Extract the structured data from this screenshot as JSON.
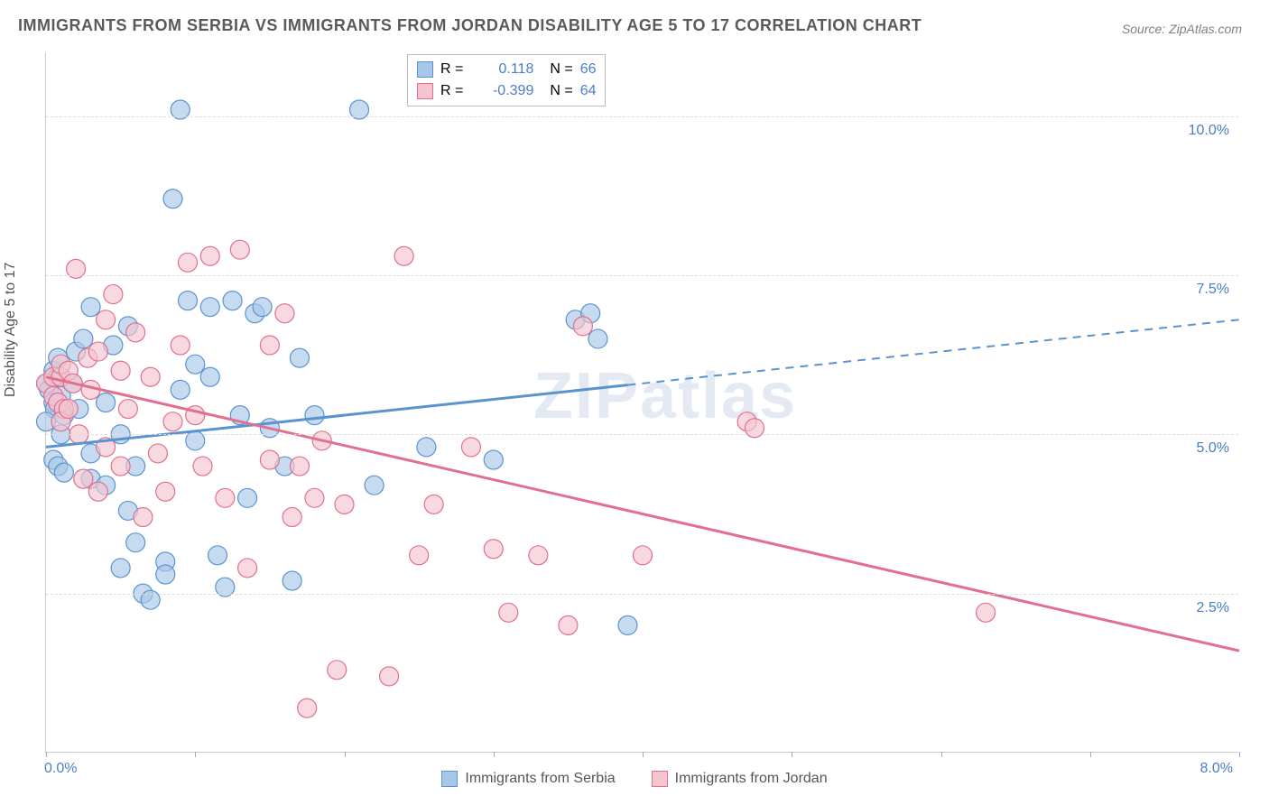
{
  "title": "IMMIGRANTS FROM SERBIA VS IMMIGRANTS FROM JORDAN DISABILITY AGE 5 TO 17 CORRELATION CHART",
  "source": "Source: ZipAtlas.com",
  "y_axis_title": "Disability Age 5 to 17",
  "watermark": "ZIPatlas",
  "chart": {
    "type": "scatter",
    "xlim": [
      0,
      8
    ],
    "ylim": [
      0,
      11
    ],
    "y_ticks": [
      2.5,
      5.0,
      7.5,
      10.0
    ],
    "y_tick_labels": [
      "2.5%",
      "5.0%",
      "7.5%",
      "10.0%"
    ],
    "x_left_label": "0.0%",
    "x_right_label": "8.0%",
    "x_ticks": [
      0,
      1,
      2,
      3,
      4,
      5,
      6,
      7,
      8
    ],
    "background_color": "#ffffff",
    "grid_color": "#dddddd",
    "series": [
      {
        "name": "Immigrants from Serbia",
        "color_fill": "#a8c7e8",
        "color_stroke": "#5b93cf",
        "r_value": "0.118",
        "n_value": "66",
        "trend": {
          "x1": 0,
          "y1": 4.8,
          "x2": 8,
          "y2": 6.8,
          "solid_until_x": 3.9
        },
        "points": [
          [
            0.0,
            5.8
          ],
          [
            0.02,
            5.7
          ],
          [
            0.05,
            6.0
          ],
          [
            0.05,
            5.5
          ],
          [
            0.08,
            5.9
          ],
          [
            0.06,
            5.4
          ],
          [
            0.0,
            5.2
          ],
          [
            0.08,
            6.2
          ],
          [
            0.1,
            5.9
          ],
          [
            0.1,
            5.6
          ],
          [
            0.12,
            5.3
          ],
          [
            0.1,
            5.0
          ],
          [
            0.05,
            4.6
          ],
          [
            0.08,
            4.5
          ],
          [
            0.12,
            4.4
          ],
          [
            0.2,
            6.3
          ],
          [
            0.18,
            5.8
          ],
          [
            0.22,
            5.4
          ],
          [
            0.25,
            6.5
          ],
          [
            0.3,
            7.0
          ],
          [
            0.3,
            4.7
          ],
          [
            0.3,
            4.3
          ],
          [
            0.4,
            4.2
          ],
          [
            0.4,
            5.5
          ],
          [
            0.45,
            6.4
          ],
          [
            0.5,
            5.0
          ],
          [
            0.55,
            6.7
          ],
          [
            0.55,
            3.8
          ],
          [
            0.6,
            4.5
          ],
          [
            0.6,
            3.3
          ],
          [
            0.5,
            2.9
          ],
          [
            0.65,
            2.5
          ],
          [
            0.7,
            2.4
          ],
          [
            0.8,
            3.0
          ],
          [
            0.8,
            2.8
          ],
          [
            0.85,
            8.7
          ],
          [
            0.9,
            10.1
          ],
          [
            0.95,
            7.1
          ],
          [
            0.9,
            5.7
          ],
          [
            1.0,
            6.1
          ],
          [
            1.0,
            4.9
          ],
          [
            1.1,
            5.9
          ],
          [
            1.1,
            7.0
          ],
          [
            1.15,
            3.1
          ],
          [
            1.2,
            2.6
          ],
          [
            1.25,
            7.1
          ],
          [
            1.3,
            5.3
          ],
          [
            1.35,
            4.0
          ],
          [
            1.4,
            6.9
          ],
          [
            1.45,
            7.0
          ],
          [
            1.5,
            5.1
          ],
          [
            1.6,
            4.5
          ],
          [
            1.65,
            2.7
          ],
          [
            1.7,
            6.2
          ],
          [
            1.8,
            5.3
          ],
          [
            2.1,
            10.1
          ],
          [
            2.2,
            4.2
          ],
          [
            2.55,
            4.8
          ],
          [
            3.0,
            4.6
          ],
          [
            3.55,
            6.8
          ],
          [
            3.65,
            6.9
          ],
          [
            3.7,
            6.5
          ],
          [
            3.9,
            2.0
          ]
        ]
      },
      {
        "name": "Immigrants from Jordan",
        "color_fill": "#f4c4cf",
        "color_stroke": "#e16f8e",
        "r_value": "-0.399",
        "n_value": "64",
        "trend": {
          "x1": 0,
          "y1": 5.9,
          "x2": 8,
          "y2": 1.6,
          "solid_until_x": 8
        },
        "points": [
          [
            0.0,
            5.8
          ],
          [
            0.05,
            5.9
          ],
          [
            0.05,
            5.6
          ],
          [
            0.08,
            5.5
          ],
          [
            0.1,
            5.9
          ],
          [
            0.1,
            6.1
          ],
          [
            0.12,
            5.4
          ],
          [
            0.1,
            5.2
          ],
          [
            0.15,
            6.0
          ],
          [
            0.15,
            5.4
          ],
          [
            0.18,
            5.8
          ],
          [
            0.2,
            7.6
          ],
          [
            0.22,
            5.0
          ],
          [
            0.25,
            4.3
          ],
          [
            0.28,
            6.2
          ],
          [
            0.3,
            5.7
          ],
          [
            0.35,
            6.3
          ],
          [
            0.35,
            4.1
          ],
          [
            0.4,
            6.8
          ],
          [
            0.4,
            4.8
          ],
          [
            0.45,
            7.2
          ],
          [
            0.5,
            4.5
          ],
          [
            0.5,
            6.0
          ],
          [
            0.55,
            5.4
          ],
          [
            0.6,
            6.6
          ],
          [
            0.65,
            3.7
          ],
          [
            0.7,
            5.9
          ],
          [
            0.75,
            4.7
          ],
          [
            0.8,
            4.1
          ],
          [
            0.85,
            5.2
          ],
          [
            0.9,
            6.4
          ],
          [
            0.95,
            7.7
          ],
          [
            1.0,
            5.3
          ],
          [
            1.05,
            4.5
          ],
          [
            1.1,
            7.8
          ],
          [
            1.2,
            4.0
          ],
          [
            1.3,
            7.9
          ],
          [
            1.35,
            2.9
          ],
          [
            1.5,
            6.4
          ],
          [
            1.5,
            4.6
          ],
          [
            1.6,
            6.9
          ],
          [
            1.65,
            3.7
          ],
          [
            1.7,
            4.5
          ],
          [
            1.75,
            0.7
          ],
          [
            1.8,
            4.0
          ],
          [
            1.85,
            4.9
          ],
          [
            1.95,
            1.3
          ],
          [
            2.0,
            3.9
          ],
          [
            2.3,
            1.2
          ],
          [
            2.4,
            7.8
          ],
          [
            2.5,
            3.1
          ],
          [
            2.6,
            3.9
          ],
          [
            2.85,
            4.8
          ],
          [
            3.0,
            3.2
          ],
          [
            3.1,
            2.2
          ],
          [
            3.3,
            3.1
          ],
          [
            3.5,
            2.0
          ],
          [
            3.6,
            6.7
          ],
          [
            4.0,
            3.1
          ],
          [
            4.7,
            5.2
          ],
          [
            4.75,
            5.1
          ],
          [
            6.3,
            2.2
          ]
        ]
      }
    ]
  },
  "legend": {
    "r_label": "R =",
    "n_label": "N ="
  }
}
